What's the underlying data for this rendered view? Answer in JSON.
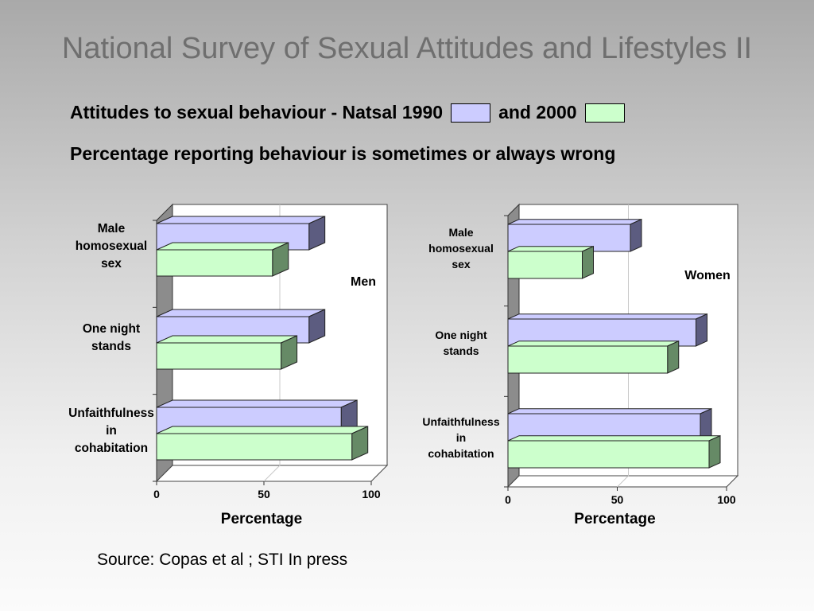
{
  "slide": {
    "title": "National Survey of Sexual Attitudes and Lifestyles II",
    "subtitle_part1": "Attitudes to sexual behaviour - Natsal 1990",
    "subtitle_part2": "and 2000",
    "subtitle_line2": "Percentage reporting behaviour is sometimes or always wrong",
    "source": "Source: Copas et al ; STI In press"
  },
  "colors": {
    "series_1990": "#ccccff",
    "series_2000": "#ccffcc",
    "series_1990_dark": "#5c5c80",
    "series_2000_dark": "#668a66",
    "wall": "#8c8c8c"
  },
  "chart_data": [
    {
      "type": "bar",
      "orientation": "horizontal",
      "panel_label": "Men",
      "categories": [
        "Male homosexual sex",
        "One night stands",
        "Unfaithfulness in cohabitation"
      ],
      "category_lines": [
        [
          "Male",
          "homosexual",
          "sex"
        ],
        [
          "One night",
          "stands"
        ],
        [
          "Unfaithfulness",
          "in",
          "cohabitation"
        ]
      ],
      "series": [
        {
          "name": "1990",
          "values": [
            71,
            71,
            86
          ]
        },
        {
          "name": "2000",
          "values": [
            54,
            58,
            91
          ]
        }
      ],
      "xlabel": "Percentage",
      "xlim": [
        0,
        100
      ],
      "xticks": [
        "0",
        "50",
        "100"
      ],
      "grid": true
    },
    {
      "type": "bar",
      "orientation": "horizontal",
      "panel_label": "Women",
      "categories": [
        "Male homosexual sex",
        "One night stands",
        "Unfaithfulness in cohabitation"
      ],
      "category_lines": [
        [
          "Male",
          "homosexual",
          "sex"
        ],
        [
          "One night",
          "stands"
        ],
        [
          "Unfaithfulness",
          "in",
          "cohabitation"
        ]
      ],
      "series": [
        {
          "name": "1990",
          "values": [
            56,
            86,
            88
          ]
        },
        {
          "name": "2000",
          "values": [
            34,
            73,
            92
          ]
        }
      ],
      "xlabel": "Percentage",
      "xlim": [
        0,
        100
      ],
      "xticks": [
        "0",
        "50",
        "100"
      ],
      "grid": true
    }
  ]
}
